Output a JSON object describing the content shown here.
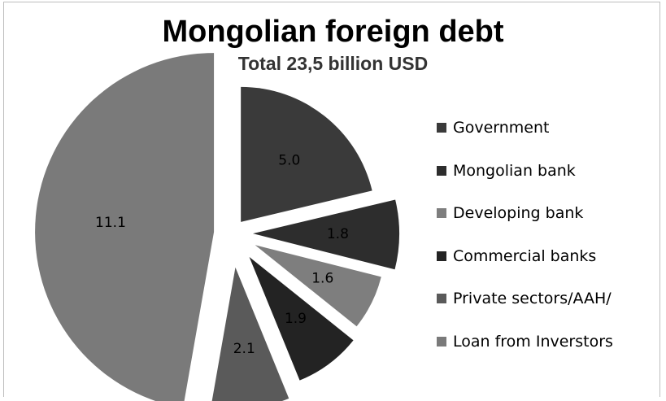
{
  "chart_data": {
    "type": "pie",
    "title": "Mongolian foreign debt",
    "subtitle": "Total 23,5 billion USD",
    "legend_position": "right",
    "slices": [
      {
        "label": "Government",
        "value": 5.0,
        "value_label": "5.0",
        "color": "#3a3a3a"
      },
      {
        "label": "Mongolian bank",
        "value": 1.8,
        "value_label": "1.8",
        "color": "#2d2d2d"
      },
      {
        "label": "Developing bank",
        "value": 1.6,
        "value_label": "1.6",
        "color": "#7e7e7e"
      },
      {
        "label": "Commercial banks",
        "value": 1.9,
        "value_label": "1.9",
        "color": "#232323"
      },
      {
        "label": "Private sectors/AAH/",
        "value": 2.1,
        "value_label": "2.1",
        "color": "#5a5a5a"
      },
      {
        "label": "Loan from Inverstors",
        "value": 11.1,
        "value_label": "11.1",
        "color": "#7a7a7a"
      }
    ]
  }
}
